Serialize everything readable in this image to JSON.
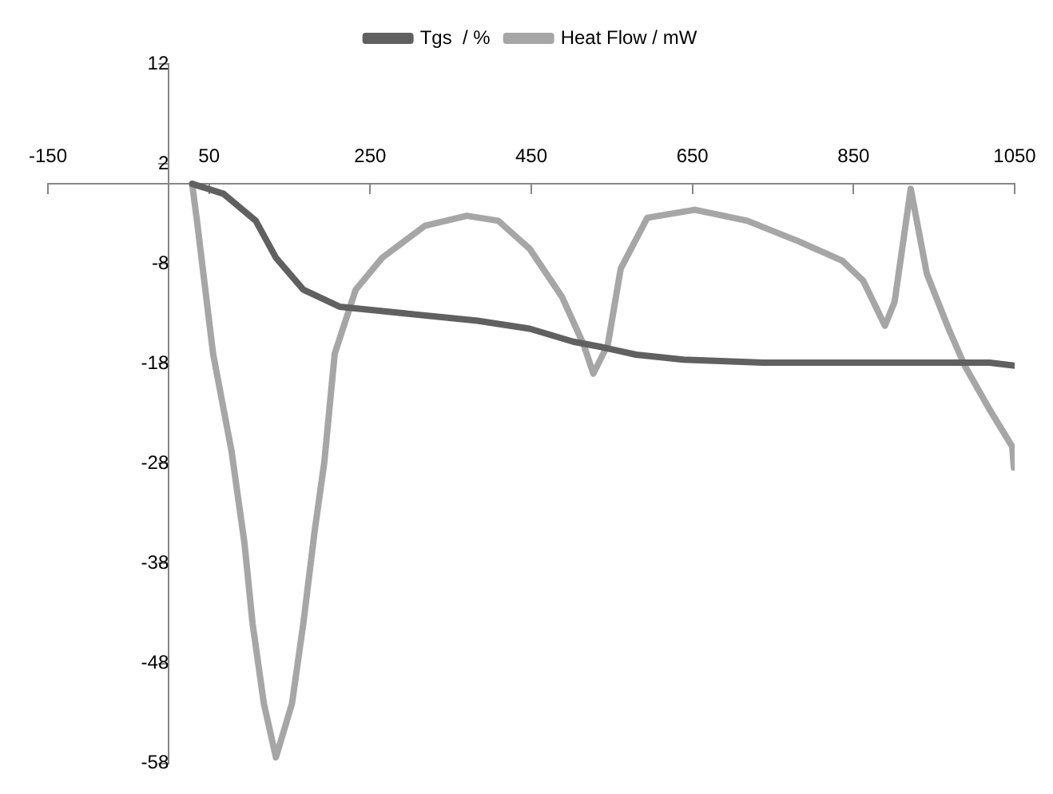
{
  "chart_data": {
    "type": "line",
    "legend": "top",
    "grid": false,
    "marker": "none",
    "line_style": "solid",
    "xlim": [
      -150,
      1050
    ],
    "xticks": [
      -150,
      50,
      250,
      450,
      650,
      850,
      1050
    ],
    "ylim": [
      -58,
      12
    ],
    "yticks": [
      12,
      2,
      -8,
      -18,
      -28,
      -38,
      -48,
      -58
    ],
    "series": [
      {
        "name": "Tgs  / %",
        "color": "#606060",
        "x": [
          29,
          68,
          108,
          133,
          167,
          212,
          285,
          383,
          448,
          502,
          535,
          580,
          639,
          738,
          901,
          1019,
          1050
        ],
        "values": [
          0,
          -1,
          -3.7,
          -7.4,
          -10.6,
          -12.3,
          -12.9,
          -13.7,
          -14.5,
          -15.8,
          -16.3,
          -17.1,
          -17.6,
          -17.9,
          -17.9,
          -17.9,
          -18.2
        ]
      },
      {
        "name": "Heat Flow / mW",
        "color": "#a6a6a6",
        "x": [
          29,
          35,
          55,
          78,
          94,
          104,
          118,
          133,
          153,
          167,
          181,
          193,
          206,
          232,
          265,
          318,
          370,
          409,
          448,
          488,
          515,
          527,
          545,
          561,
          594,
          653,
          718,
          783,
          836,
          862,
          889,
          901,
          921,
          941,
          968,
          988,
          1019,
          1047,
          1049
        ],
        "values": [
          0,
          -3.7,
          -17,
          -26.8,
          -36,
          -44,
          -52,
          -57.4,
          -52,
          -44,
          -34.8,
          -27.9,
          -17,
          -10.6,
          -7.4,
          -4.2,
          -3.2,
          -3.7,
          -6.5,
          -11.3,
          -16.1,
          -19,
          -16.1,
          -8.5,
          -3.4,
          -2.6,
          -3.7,
          -5.8,
          -7.7,
          -9.7,
          -14.2,
          -11.8,
          -0.5,
          -9,
          -14.5,
          -18.2,
          -22.6,
          -26.3,
          -28.4
        ]
      }
    ]
  }
}
